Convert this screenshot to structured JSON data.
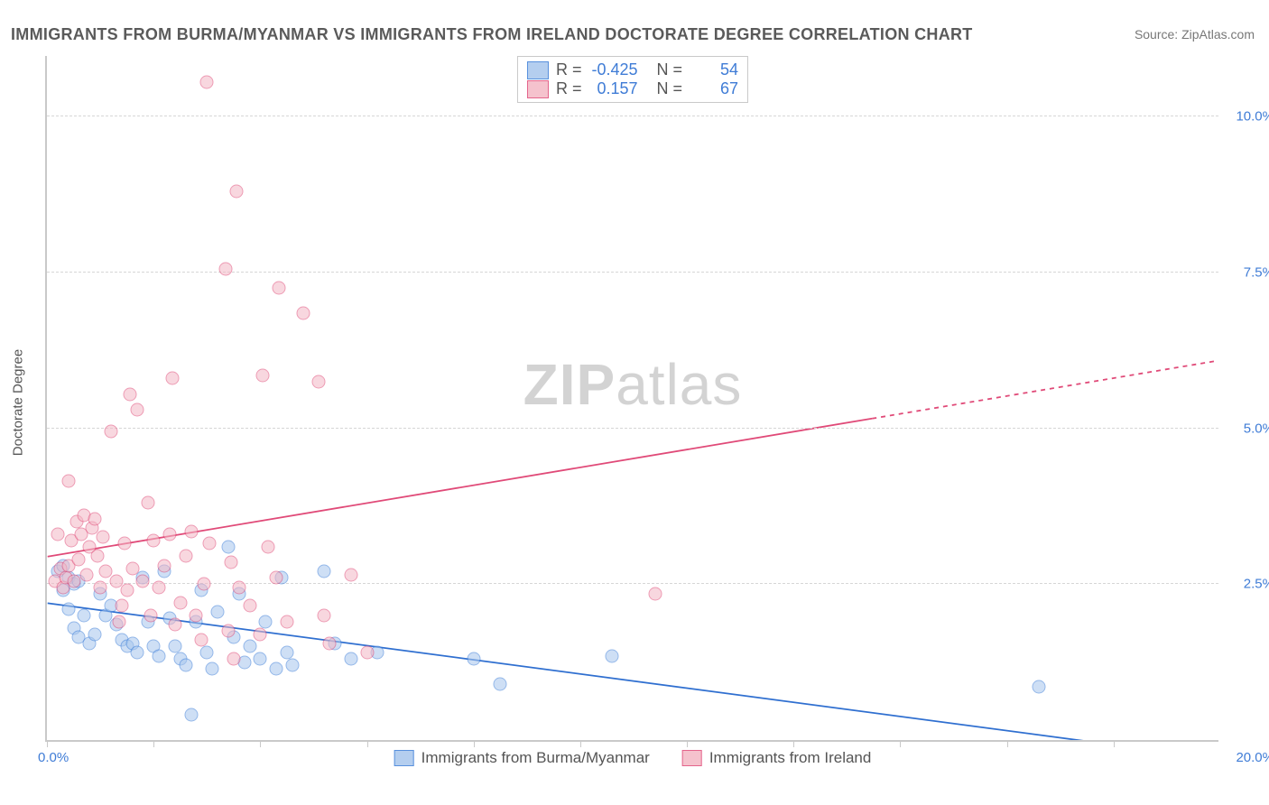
{
  "title": "IMMIGRANTS FROM BURMA/MYANMAR VS IMMIGRANTS FROM IRELAND DOCTORATE DEGREE CORRELATION CHART",
  "source": "Source: ZipAtlas.com",
  "watermark_bold": "ZIP",
  "watermark_light": "atlas",
  "y_axis_title": "Doctorate Degree",
  "chart": {
    "type": "scatter",
    "background_color": "#ffffff",
    "grid_color": "#d6d6d6",
    "axis_color": "#c9c9c9",
    "tick_label_color": "#3f7cd6",
    "title_color": "#5a5a5a",
    "title_fontsize": 18,
    "label_fontsize": 15,
    "xlim": [
      0,
      22
    ],
    "ylim": [
      0,
      11
    ],
    "x_tick_positions": [
      0,
      2,
      4,
      6,
      8,
      10,
      12,
      14,
      16,
      18,
      20
    ],
    "x_tick_labels_left": "0.0%",
    "x_tick_labels_right": "20.0%",
    "y_gridlines": [
      2.5,
      5.0,
      7.5,
      10.0
    ],
    "y_gridline_labels": [
      "2.5%",
      "5.0%",
      "7.5%",
      "10.0%"
    ],
    "marker_size": 15,
    "marker_opacity": 0.55,
    "line_width": 1.8
  },
  "series": [
    {
      "name": "Immigrants from Burma/Myanmar",
      "fill": "#a7c6ed",
      "stroke": "#3b7dd8",
      "line_color": "#2f6fd0",
      "R": "-0.425",
      "N": "54",
      "trend": {
        "x1": 0,
        "y1": 2.2,
        "x2": 22,
        "y2": -0.3,
        "dashed_after_x": null
      },
      "points": [
        [
          0.2,
          2.7
        ],
        [
          0.3,
          2.8
        ],
        [
          0.4,
          2.6
        ],
        [
          0.5,
          2.5
        ],
        [
          0.3,
          2.4
        ],
        [
          0.6,
          2.55
        ],
        [
          0.4,
          2.1
        ],
        [
          0.7,
          2.0
        ],
        [
          0.5,
          1.8
        ],
        [
          0.6,
          1.65
        ],
        [
          0.8,
          1.55
        ],
        [
          0.9,
          1.7
        ],
        [
          1.0,
          2.35
        ],
        [
          1.1,
          2.0
        ],
        [
          1.2,
          2.15
        ],
        [
          1.3,
          1.85
        ],
        [
          1.4,
          1.6
        ],
        [
          1.5,
          1.5
        ],
        [
          1.6,
          1.55
        ],
        [
          1.7,
          1.4
        ],
        [
          1.8,
          2.6
        ],
        [
          1.9,
          1.9
        ],
        [
          2.0,
          1.5
        ],
        [
          2.1,
          1.35
        ],
        [
          2.2,
          2.7
        ],
        [
          2.3,
          1.95
        ],
        [
          2.4,
          1.5
        ],
        [
          2.5,
          1.3
        ],
        [
          2.6,
          1.2
        ],
        [
          2.7,
          0.4
        ],
        [
          2.8,
          1.9
        ],
        [
          2.9,
          2.4
        ],
        [
          3.0,
          1.4
        ],
        [
          3.1,
          1.15
        ],
        [
          3.2,
          2.05
        ],
        [
          3.4,
          3.1
        ],
        [
          3.5,
          1.65
        ],
        [
          3.6,
          2.35
        ],
        [
          3.7,
          1.25
        ],
        [
          3.8,
          1.5
        ],
        [
          4.0,
          1.3
        ],
        [
          4.1,
          1.9
        ],
        [
          4.3,
          1.15
        ],
        [
          4.4,
          2.6
        ],
        [
          4.5,
          1.4
        ],
        [
          4.6,
          1.2
        ],
        [
          5.2,
          2.7
        ],
        [
          5.4,
          1.55
        ],
        [
          5.7,
          1.3
        ],
        [
          6.2,
          1.4
        ],
        [
          8.0,
          1.3
        ],
        [
          8.5,
          0.9
        ],
        [
          10.6,
          1.35
        ],
        [
          18.6,
          0.85
        ]
      ]
    },
    {
      "name": "Immigrants from Ireland",
      "fill": "#f4b8c5",
      "stroke": "#e04a78",
      "line_color": "#e04a78",
      "R": "0.157",
      "N": "67",
      "trend": {
        "x1": 0,
        "y1": 2.95,
        "x2": 22,
        "y2": 6.1,
        "dashed_after_x": 15.5
      },
      "points": [
        [
          0.15,
          2.55
        ],
        [
          0.2,
          3.3
        ],
        [
          0.25,
          2.75
        ],
        [
          0.3,
          2.45
        ],
        [
          0.35,
          2.6
        ],
        [
          0.4,
          2.8
        ],
        [
          0.4,
          4.15
        ],
        [
          0.45,
          3.2
        ],
        [
          0.5,
          2.55
        ],
        [
          0.55,
          3.5
        ],
        [
          0.6,
          2.9
        ],
        [
          0.65,
          3.3
        ],
        [
          0.7,
          3.6
        ],
        [
          0.75,
          2.65
        ],
        [
          0.8,
          3.1
        ],
        [
          0.85,
          3.4
        ],
        [
          0.9,
          3.55
        ],
        [
          0.95,
          2.95
        ],
        [
          1.0,
          2.45
        ],
        [
          1.05,
          3.25
        ],
        [
          1.1,
          2.7
        ],
        [
          1.2,
          4.95
        ],
        [
          1.3,
          2.55
        ],
        [
          1.35,
          1.9
        ],
        [
          1.4,
          2.15
        ],
        [
          1.45,
          3.15
        ],
        [
          1.5,
          2.4
        ],
        [
          1.55,
          5.55
        ],
        [
          1.6,
          2.75
        ],
        [
          1.7,
          5.3
        ],
        [
          1.8,
          2.55
        ],
        [
          1.9,
          3.8
        ],
        [
          1.95,
          2.0
        ],
        [
          2.0,
          3.2
        ],
        [
          2.1,
          2.45
        ],
        [
          2.2,
          2.8
        ],
        [
          2.3,
          3.3
        ],
        [
          2.35,
          5.8
        ],
        [
          2.4,
          1.85
        ],
        [
          2.5,
          2.2
        ],
        [
          2.6,
          2.95
        ],
        [
          2.7,
          3.35
        ],
        [
          2.8,
          2.0
        ],
        [
          2.9,
          1.6
        ],
        [
          2.95,
          2.5
        ],
        [
          3.0,
          10.55
        ],
        [
          3.05,
          3.15
        ],
        [
          3.35,
          7.55
        ],
        [
          3.4,
          1.75
        ],
        [
          3.45,
          2.85
        ],
        [
          3.5,
          1.3
        ],
        [
          3.55,
          8.8
        ],
        [
          3.6,
          2.45
        ],
        [
          3.8,
          2.15
        ],
        [
          4.0,
          1.7
        ],
        [
          4.05,
          5.85
        ],
        [
          4.15,
          3.1
        ],
        [
          4.3,
          2.6
        ],
        [
          4.35,
          7.25
        ],
        [
          4.5,
          1.9
        ],
        [
          4.8,
          6.85
        ],
        [
          5.1,
          5.75
        ],
        [
          5.2,
          2.0
        ],
        [
          5.3,
          1.55
        ],
        [
          5.7,
          2.65
        ],
        [
          6.0,
          1.4
        ],
        [
          11.4,
          2.35
        ]
      ]
    }
  ],
  "legend_stats_labels": {
    "R": "R =",
    "N": "N ="
  },
  "legend_bottom": [
    "Immigrants from Burma/Myanmar",
    "Immigrants from Ireland"
  ]
}
